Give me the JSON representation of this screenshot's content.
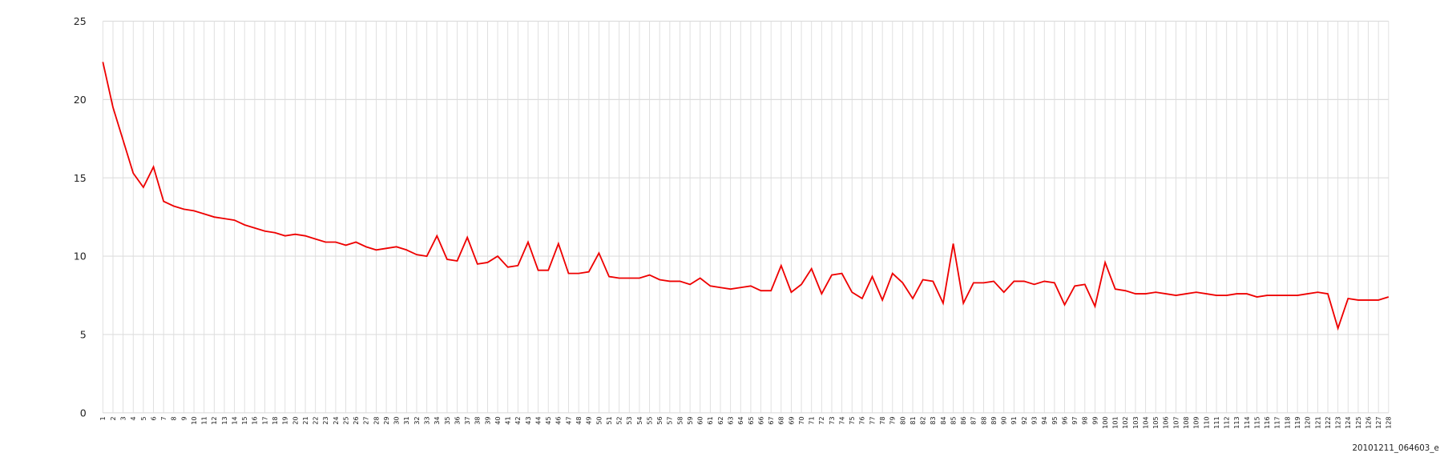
{
  "chart_data": {
    "type": "line",
    "annotation": "20101211_064603_e",
    "categories": [
      "1",
      "2",
      "3",
      "4",
      "5",
      "6",
      "7",
      "8",
      "9",
      "10",
      "11",
      "12",
      "13",
      "14",
      "15",
      "16",
      "17",
      "18",
      "19",
      "20",
      "21",
      "22",
      "23",
      "24",
      "25",
      "26",
      "27",
      "28",
      "29",
      "30",
      "31",
      "32",
      "33",
      "34",
      "35",
      "36",
      "37",
      "38",
      "39",
      "40",
      "41",
      "42",
      "43",
      "44",
      "45",
      "46",
      "47",
      "48",
      "49",
      "50",
      "51",
      "52",
      "53",
      "54",
      "55",
      "56",
      "57",
      "58",
      "59",
      "60",
      "61",
      "62",
      "63",
      "64",
      "65",
      "66",
      "67",
      "68",
      "69",
      "70",
      "71",
      "72",
      "73",
      "74",
      "75",
      "76",
      "77",
      "78",
      "79",
      "80",
      "81",
      "82",
      "83",
      "84",
      "85",
      "86",
      "87",
      "88",
      "89",
      "90",
      "91",
      "92",
      "93",
      "94",
      "95",
      "96",
      "97",
      "98",
      "99",
      "100",
      "101",
      "102",
      "103",
      "104",
      "105",
      "106",
      "107",
      "108",
      "109",
      "110",
      "111",
      "112",
      "113",
      "114",
      "115",
      "116",
      "117",
      "118",
      "119",
      "120",
      "121",
      "122",
      "123",
      "124",
      "125",
      "126",
      "127",
      "128"
    ],
    "series": [
      {
        "color": "#ee0000",
        "values": [
          22.4,
          19.5,
          17.4,
          15.3,
          14.4,
          15.7,
          13.5,
          13.2,
          13.0,
          12.9,
          12.7,
          12.5,
          12.4,
          12.3,
          12.0,
          11.8,
          11.6,
          11.5,
          11.3,
          11.4,
          11.3,
          11.1,
          10.9,
          10.9,
          10.7,
          10.9,
          10.6,
          10.4,
          10.5,
          10.6,
          10.4,
          10.1,
          10.0,
          11.3,
          9.8,
          9.7,
          11.2,
          9.5,
          9.6,
          10.0,
          9.3,
          9.4,
          10.9,
          9.1,
          9.1,
          10.8,
          8.9,
          8.9,
          9.0,
          10.2,
          8.7,
          8.6,
          8.6,
          8.6,
          8.8,
          8.5,
          8.4,
          8.4,
          8.2,
          8.6,
          8.1,
          8.0,
          7.9,
          8.0,
          8.1,
          7.8,
          7.8,
          9.4,
          7.7,
          8.2,
          9.2,
          7.6,
          8.8,
          8.9,
          7.7,
          7.3,
          8.7,
          7.2,
          8.9,
          8.3,
          7.3,
          8.5,
          8.4,
          7.0,
          10.8,
          7.0,
          8.3,
          8.3,
          8.4,
          7.7,
          8.4,
          8.4,
          8.2,
          8.4,
          8.3,
          6.9,
          8.1,
          8.2,
          6.8,
          9.6,
          7.9,
          7.8,
          7.6,
          7.6,
          7.7,
          7.6,
          7.5,
          7.6,
          7.7,
          7.6,
          7.5,
          7.5,
          7.6,
          7.6,
          7.4,
          7.5,
          7.5,
          7.5,
          7.5,
          7.6,
          7.7,
          7.6,
          5.4,
          7.3,
          7.2,
          7.2,
          7.2,
          7.4
        ]
      }
    ],
    "ylim": [
      0,
      25
    ],
    "yticks": [
      0,
      5,
      10,
      15,
      20,
      25
    ],
    "grid": true
  }
}
